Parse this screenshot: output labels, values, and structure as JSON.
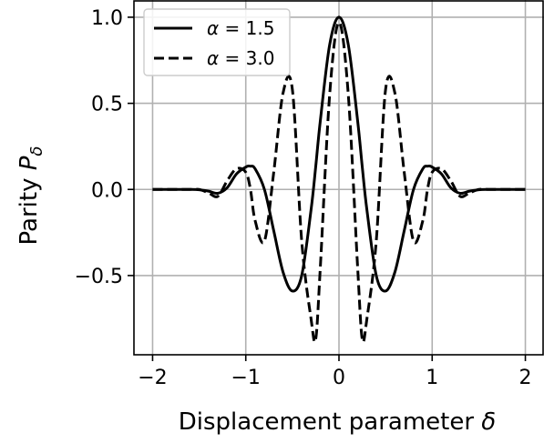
{
  "chart_data": {
    "type": "line",
    "title": "",
    "xlabel": "Displacement parameter δ",
    "ylabel": "Parity P_δ",
    "xlabel_parts": {
      "text": "Displacement parameter ",
      "symbol": "δ"
    },
    "ylabel_parts": {
      "text": "Parity ",
      "symbol": "P",
      "subscript": "δ"
    },
    "xlim": [
      -2.2,
      2.2
    ],
    "ylim": [
      -0.96,
      1.1
    ],
    "x_ticks": [
      -2,
      -1,
      0,
      1,
      2
    ],
    "x_tick_labels": [
      "−2",
      "−1",
      "0",
      "1",
      "2"
    ],
    "y_ticks": [
      -0.5,
      0.0,
      0.5,
      1.0
    ],
    "y_tick_labels": [
      "−0.5",
      "0.0",
      "0.5",
      "1.0"
    ],
    "grid": true,
    "legend_position": "top-left",
    "x": [
      -2.0,
      -1.9,
      -1.8,
      -1.7,
      -1.6,
      -1.5,
      -1.4,
      -1.3,
      -1.2,
      -1.1,
      -1.0,
      -0.95,
      -0.9,
      -0.8,
      -0.7,
      -0.6,
      -0.5,
      -0.4,
      -0.3,
      -0.25,
      -0.2,
      -0.1,
      0.0,
      0.1,
      0.2,
      0.25,
      0.3,
      0.4,
      0.5,
      0.6,
      0.7,
      0.8,
      0.9,
      0.95,
      1.0,
      1.1,
      1.2,
      1.3,
      1.4,
      1.5,
      1.6,
      1.7,
      1.8,
      1.9,
      2.0
    ],
    "series": [
      {
        "name": "α = 1.5",
        "label_prefix": "α = ",
        "label_value": "1.5",
        "style": "solid",
        "color": "#000000",
        "values": [
          0.0,
          0.0,
          0.0,
          0.0,
          0.0,
          -0.002,
          -0.01,
          -0.022,
          0.01,
          0.09,
          0.13,
          0.135,
          0.12,
          0.0,
          -0.24,
          -0.48,
          -0.59,
          -0.5,
          -0.12,
          0.13,
          0.4,
          0.84,
          1.0,
          0.84,
          0.4,
          0.13,
          -0.12,
          -0.5,
          -0.59,
          -0.48,
          -0.24,
          0.0,
          0.12,
          0.135,
          0.13,
          0.09,
          0.01,
          -0.022,
          -0.01,
          -0.002,
          0.0,
          0.0,
          0.0,
          0.0,
          0.0
        ]
      },
      {
        "name": "α = 3.0",
        "label_prefix": "α = ",
        "label_value": "3.0",
        "style": "dashed",
        "color": "#000000",
        "values": [
          0.0,
          0.0,
          0.0,
          0.0,
          0.0,
          0.0,
          -0.02,
          -0.04,
          0.05,
          0.12,
          0.1,
          0.0,
          -0.18,
          -0.3,
          0.1,
          0.56,
          0.58,
          -0.3,
          -0.75,
          -0.87,
          -0.45,
          0.55,
          0.97,
          0.55,
          -0.45,
          -0.87,
          -0.75,
          -0.3,
          0.58,
          0.56,
          0.1,
          -0.3,
          -0.18,
          0.0,
          0.1,
          0.12,
          0.05,
          -0.04,
          -0.02,
          0.0,
          0.0,
          0.0,
          0.0,
          0.0,
          0.0
        ]
      }
    ]
  }
}
